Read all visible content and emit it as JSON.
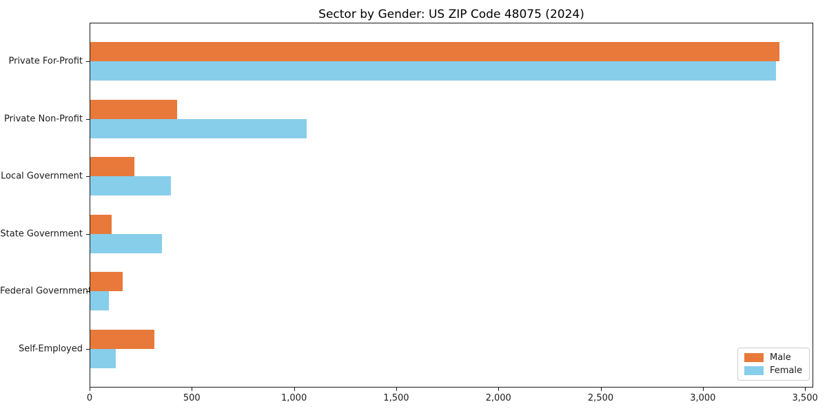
{
  "chart_data": {
    "type": "bar",
    "orientation": "horizontal",
    "title": "Sector by Gender: US ZIP Code 48075 (2024)",
    "categories": [
      "Private For-Profit",
      "Private Non-Profit",
      "Local Government",
      "State Government",
      "Federal Government",
      "Self-Employed"
    ],
    "series": [
      {
        "name": "Male",
        "color": "#E8793A",
        "values": [
          3370,
          425,
          215,
          105,
          160,
          315
        ]
      },
      {
        "name": "Female",
        "color": "#87CEEB",
        "values": [
          3355,
          1060,
          395,
          350,
          90,
          125
        ]
      }
    ],
    "xlabel": "",
    "ylabel": "",
    "xlim": [
      0,
      3540
    ],
    "xticks": [
      0,
      500,
      1000,
      1500,
      2000,
      2500,
      3000,
      3500
    ],
    "grid": false,
    "legend_position": "lower right"
  }
}
